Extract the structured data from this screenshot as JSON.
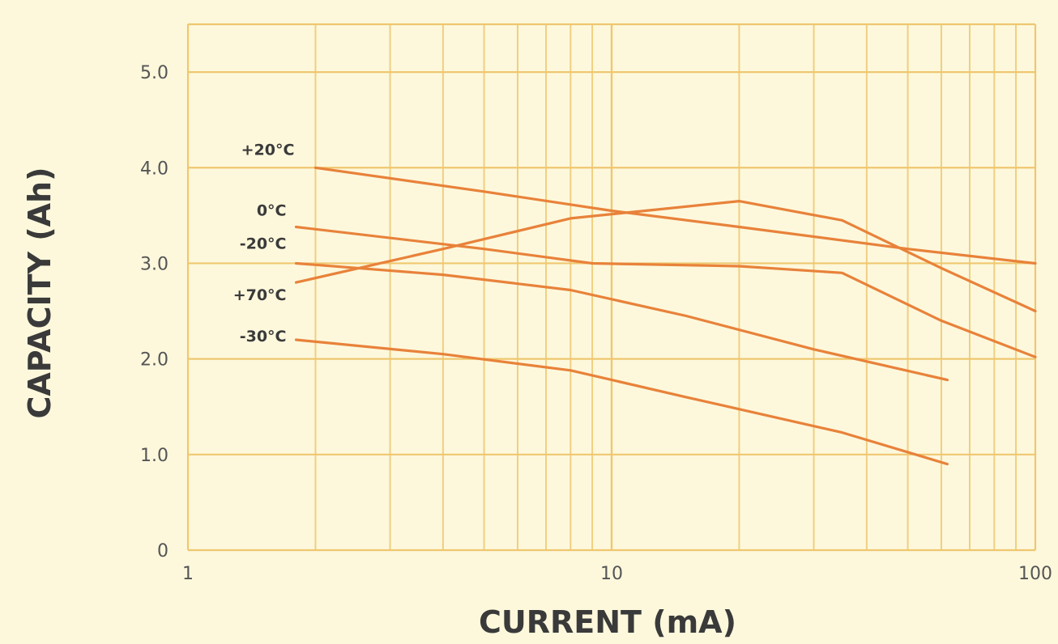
{
  "chart_data": {
    "type": "line",
    "x_scale": "log",
    "xlabel": "CURRENT (mA)",
    "ylabel": "CAPACITY (Ah)",
    "xlim": [
      1,
      100
    ],
    "ylim": [
      0,
      5.5
    ],
    "x_ticks": [
      {
        "value": 1,
        "label": "1"
      },
      {
        "value": 10,
        "label": "10"
      },
      {
        "value": 100,
        "label": "100"
      }
    ],
    "y_ticks": [
      {
        "value": 0,
        "label": "0"
      },
      {
        "value": 1,
        "label": "1.0"
      },
      {
        "value": 2,
        "label": "2.0"
      },
      {
        "value": 3,
        "label": "3.0"
      },
      {
        "value": 4,
        "label": "4.0"
      },
      {
        "value": 5,
        "label": "5.0"
      }
    ],
    "grid": true,
    "line_color": "#e8823a",
    "series": [
      {
        "name": "+20°C",
        "x": [
          2,
          5,
          10,
          20,
          50,
          100
        ],
        "y": [
          4.0,
          3.75,
          3.55,
          3.38,
          3.15,
          3.0
        ]
      },
      {
        "name": "0°C",
        "x": [
          1.8,
          5,
          9,
          20,
          35,
          60,
          100
        ],
        "y": [
          3.38,
          3.15,
          3.0,
          2.97,
          2.9,
          2.4,
          2.02
        ]
      },
      {
        "name": "-20°C",
        "x": [
          1.8,
          4,
          8,
          15,
          30,
          62
        ],
        "y": [
          3.0,
          2.88,
          2.72,
          2.45,
          2.1,
          1.78
        ]
      },
      {
        "name": "+70°C",
        "x": [
          1.8,
          4,
          8,
          12,
          20,
          35,
          60,
          100
        ],
        "y": [
          2.8,
          3.15,
          3.47,
          3.55,
          3.65,
          3.45,
          2.95,
          2.5
        ]
      },
      {
        "name": "-30°C",
        "x": [
          1.8,
          4,
          8,
          15,
          35,
          62
        ],
        "y": [
          2.2,
          2.05,
          1.88,
          1.6,
          1.23,
          0.9
        ]
      }
    ]
  }
}
